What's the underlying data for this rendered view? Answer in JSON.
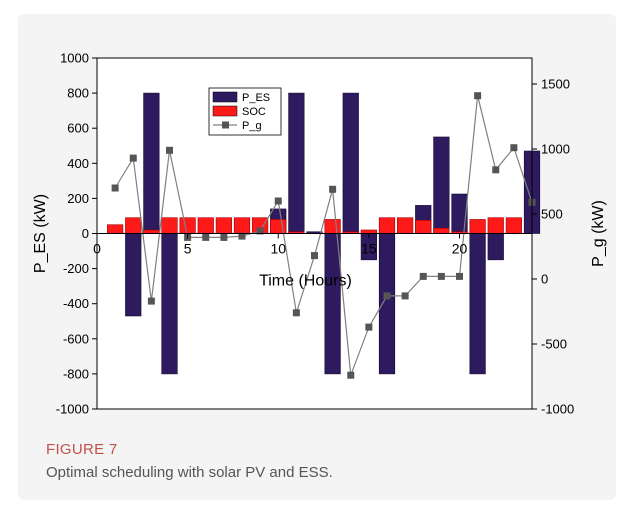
{
  "figure": {
    "label": "FIGURE 7",
    "caption": "Optimal scheduling with solar PV and ESS."
  },
  "chart_data": {
    "type": "bar",
    "xlabel": "Time (Hours)",
    "ylabel_left": "P_ES (kW)",
    "ylabel_right": "P_g (kW)",
    "ylim_left": [
      -1000,
      1000
    ],
    "ylim_right": [
      -1000,
      1700
    ],
    "xlim": [
      0,
      24
    ],
    "left_ticks": [
      1000,
      800,
      600,
      400,
      200,
      0,
      -200,
      -400,
      -600,
      -800,
      -1000
    ],
    "right_ticks": [
      1500,
      1000,
      500,
      0,
      -500,
      -1000
    ],
    "x_ticks": [
      0,
      5,
      10,
      15,
      20
    ],
    "legend_position": "top-center",
    "x": [
      1,
      2,
      3,
      4,
      5,
      6,
      7,
      8,
      9,
      10,
      11,
      12,
      13,
      14,
      15,
      16,
      17,
      18,
      19,
      20,
      21,
      22,
      23,
      24
    ],
    "series": [
      {
        "name": "P_ES",
        "axis": "left",
        "kind": "bar",
        "color": "#2e1a5e",
        "values": [
          0,
          -470,
          800,
          -800,
          0,
          0,
          0,
          0,
          0,
          140,
          800,
          10,
          -800,
          800,
          -150,
          -800,
          0,
          160,
          550,
          225,
          -800,
          -150,
          0,
          470
        ]
      },
      {
        "name": "SOC",
        "axis": "left",
        "kind": "bar",
        "color": "#ff1a1a",
        "values": [
          50,
          90,
          20,
          90,
          90,
          90,
          90,
          90,
          90,
          80,
          10,
          0,
          80,
          10,
          20,
          90,
          90,
          75,
          30,
          10,
          80,
          90,
          90,
          0
        ]
      },
      {
        "name": "P_g",
        "axis": "right",
        "kind": "line",
        "color": "#808080",
        "values": [
          700,
          930,
          -170,
          990,
          320,
          320,
          320,
          330,
          370,
          600,
          -260,
          180,
          690,
          -740,
          -370,
          -130,
          -130,
          20,
          20,
          20,
          1410,
          840,
          1010,
          590
        ]
      }
    ]
  }
}
